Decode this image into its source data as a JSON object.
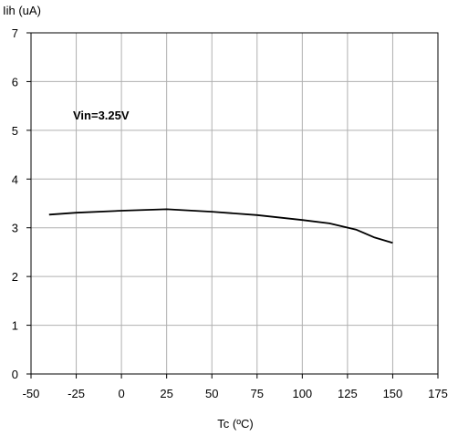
{
  "chart_data": {
    "type": "line",
    "ylabel": "Iih (uA)",
    "xlabel": "Tc (ºC)",
    "annotation": "Vin=3.25V",
    "xlim": [
      -50,
      175
    ],
    "ylim": [
      0,
      7
    ],
    "xticks": [
      -50,
      -25,
      0,
      25,
      50,
      75,
      100,
      125,
      150,
      175
    ],
    "yticks": [
      0,
      1,
      2,
      3,
      4,
      5,
      6,
      7
    ],
    "grid": true,
    "series": [
      {
        "color": "#000000",
        "x": [
          -40,
          -25,
          0,
          25,
          50,
          75,
          100,
          115,
          130,
          140,
          150
        ],
        "y": [
          3.27,
          3.31,
          3.35,
          3.38,
          3.33,
          3.26,
          3.16,
          3.09,
          2.96,
          2.8,
          2.69
        ]
      }
    ]
  }
}
